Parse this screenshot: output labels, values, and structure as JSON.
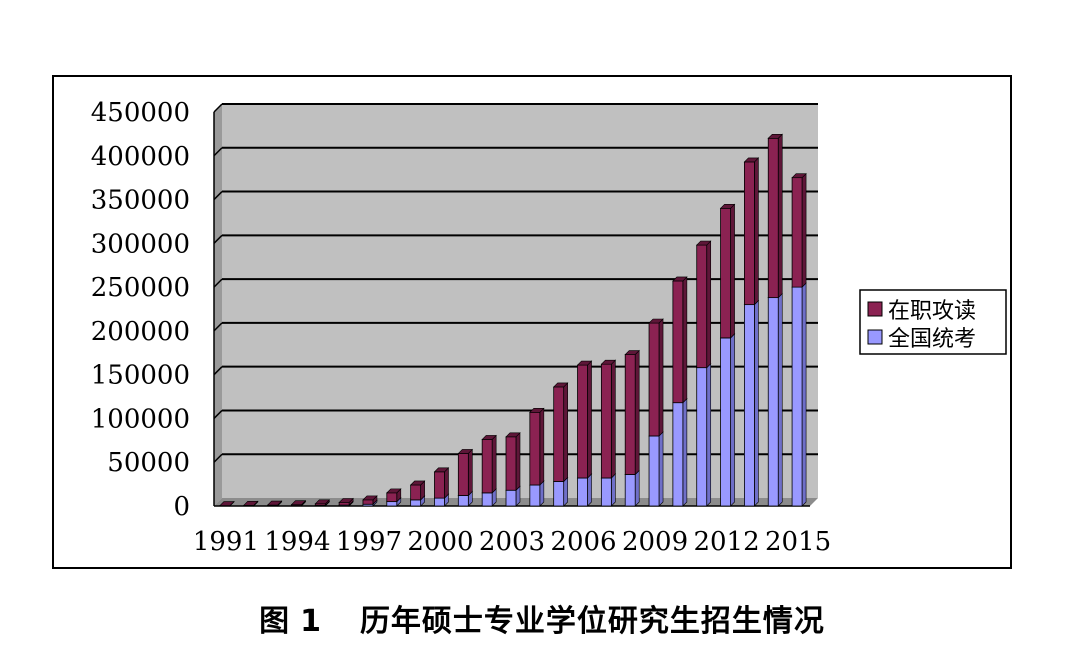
{
  "caption": {
    "figure_label": "图",
    "figure_number": "1",
    "title": "历年硕士专业学位研究生招生情况"
  },
  "colors": {
    "series_top": "#8B2252",
    "series_bottom": "#9999FF",
    "plot_bg": "#C0C0C0",
    "grid": "#000000"
  },
  "chart_data": {
    "type": "bar",
    "stacked": true,
    "title": "",
    "xlabel": "",
    "ylabel": "",
    "ylim": [
      0,
      450000
    ],
    "yticks": [
      0,
      50000,
      100000,
      150000,
      200000,
      250000,
      300000,
      350000,
      400000,
      450000
    ],
    "ytick_labels": [
      "0",
      "50000",
      "100000",
      "150000",
      "200000",
      "250000",
      "300000",
      "350000",
      "400000",
      "450000"
    ],
    "xtick_labels": [
      "1991",
      "1994",
      "1997",
      "2000",
      "2003",
      "2006",
      "2009",
      "2012",
      "2015"
    ],
    "grid": true,
    "legend_position": "right",
    "categories": [
      "1991",
      "1992",
      "1993",
      "1994",
      "1995",
      "1996",
      "1997",
      "1998",
      "1999",
      "2000",
      "2001",
      "2002",
      "2003",
      "2004",
      "2005",
      "2006",
      "2007",
      "2008",
      "2009",
      "2010",
      "2011",
      "2012",
      "2013",
      "2014",
      "2015"
    ],
    "series": [
      {
        "name": "全国统考",
        "values": [
          200,
          300,
          400,
          500,
          700,
          1000,
          2000,
          5000,
          7000,
          9000,
          12000,
          15000,
          18000,
          24000,
          28000,
          32000,
          32000,
          36000,
          80000,
          118000,
          158000,
          192000,
          230000,
          238000,
          250000
        ]
      },
      {
        "name": "在职攻读",
        "values": [
          300,
          500,
          700,
          1000,
          1800,
          3000,
          5000,
          10000,
          17000,
          30000,
          48000,
          61000,
          61000,
          83000,
          108000,
          129000,
          130000,
          137000,
          129000,
          139000,
          140000,
          148000,
          163000,
          182000,
          125000
        ]
      }
    ]
  }
}
